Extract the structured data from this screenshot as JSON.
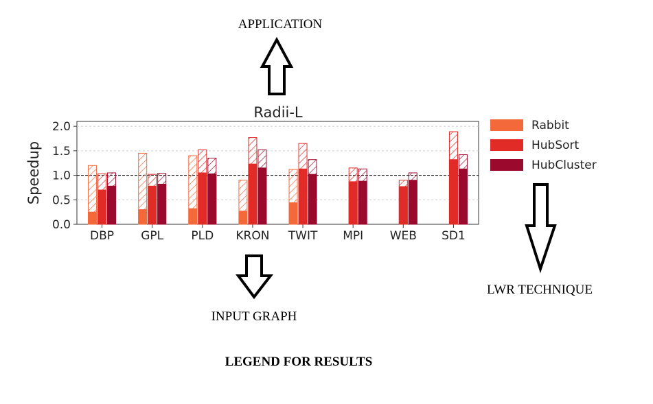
{
  "annotations": {
    "application": "APPLICATION",
    "input_graph": "INPUT GRAPH",
    "lwr_technique": "LWR TECHNIQUE",
    "legend_title": "LEGEND FOR RESULTS"
  },
  "colors": {
    "Rabbit": "#f4693a",
    "HubSort": "#e12b26",
    "HubCluster": "#9b0a2d"
  },
  "chart_data": {
    "type": "bar",
    "title": "Radii-L",
    "ylabel": "Speedup",
    "xlabel": "",
    "ylim": [
      0,
      2.1
    ],
    "yticks": [
      "0.0",
      "0.5",
      "1.0",
      "1.5",
      "2.0"
    ],
    "reference_line": 1.0,
    "grid": "horizontal dashed",
    "categories": [
      "DBP",
      "GPL",
      "PLD",
      "KRON",
      "TWIT",
      "MPI",
      "WEB",
      "SD1"
    ],
    "series": [
      {
        "name": "Rabbit",
        "values": [
          0.25,
          0.3,
          0.32,
          0.27,
          0.44,
          null,
          null,
          null
        ],
        "hatched_top": [
          1.2,
          1.45,
          1.4,
          0.9,
          1.12,
          null,
          null,
          null
        ]
      },
      {
        "name": "HubSort",
        "values": [
          0.7,
          0.78,
          1.05,
          1.23,
          1.13,
          0.87,
          0.77,
          1.32
        ],
        "hatched_top": [
          1.03,
          1.02,
          1.52,
          1.77,
          1.65,
          1.15,
          0.9,
          1.89
        ]
      },
      {
        "name": "HubCluster",
        "values": [
          0.78,
          0.82,
          1.03,
          1.15,
          1.02,
          0.88,
          0.9,
          1.13
        ],
        "hatched_top": [
          1.05,
          1.04,
          1.35,
          1.52,
          1.32,
          1.13,
          1.05,
          1.42
        ]
      }
    ],
    "legend": [
      "Rabbit",
      "HubSort",
      "HubCluster"
    ],
    "legend_position": "right"
  }
}
